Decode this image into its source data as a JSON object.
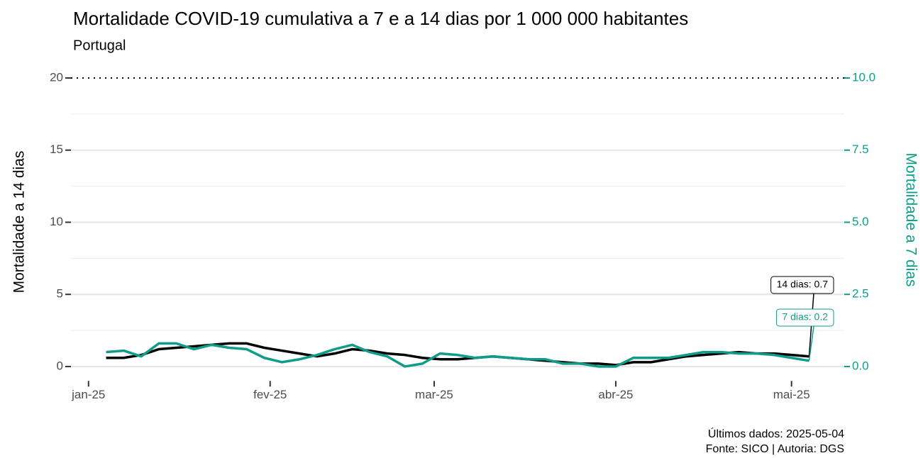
{
  "chart_data": {
    "type": "line",
    "title": "Mortalidade COVID-19 cumulativa a 7 e a 14 dias por 1 000 000 habitantes",
    "subtitle": "Portugal",
    "ylabel": "Mortalidade a 14 dias",
    "y2label": "Mortalidade a 7 dias",
    "caption": [
      "Últimos dados: 2025-05-04",
      "Fonte: SICO | Autoria: DGS"
    ],
    "x": [
      "2025-01-04",
      "2025-01-07",
      "2025-01-10",
      "2025-01-13",
      "2025-01-16",
      "2025-01-19",
      "2025-01-22",
      "2025-01-25",
      "2025-01-28",
      "2025-01-31",
      "2025-02-03",
      "2025-02-06",
      "2025-02-09",
      "2025-02-12",
      "2025-02-15",
      "2025-02-18",
      "2025-02-21",
      "2025-02-24",
      "2025-02-27",
      "2025-03-02",
      "2025-03-05",
      "2025-03-08",
      "2025-03-11",
      "2025-03-14",
      "2025-03-17",
      "2025-03-20",
      "2025-03-23",
      "2025-03-26",
      "2025-03-29",
      "2025-04-01",
      "2025-04-04",
      "2025-04-07",
      "2025-04-10",
      "2025-04-13",
      "2025-04-16",
      "2025-04-19",
      "2025-04-22",
      "2025-04-25",
      "2025-04-28",
      "2025-05-01",
      "2025-05-04"
    ],
    "series": [
      {
        "label": "14 dias: 0.7",
        "color": "#000000",
        "values": [
          0.6,
          0.6,
          0.8,
          1.2,
          1.3,
          1.4,
          1.5,
          1.6,
          1.6,
          1.3,
          1.1,
          0.9,
          0.7,
          0.9,
          1.2,
          1.1,
          0.9,
          0.8,
          0.6,
          0.5,
          0.5,
          0.6,
          0.7,
          0.6,
          0.5,
          0.4,
          0.3,
          0.2,
          0.2,
          0.1,
          0.3,
          0.3,
          0.5,
          0.7,
          0.8,
          0.9,
          1.0,
          0.9,
          0.9,
          0.8,
          0.7
        ]
      },
      {
        "label": "7 dias: 0.2",
        "color": "#0f9d8a",
        "axis": "y2",
        "values": [
          0.5,
          0.55,
          0.35,
          0.8,
          0.8,
          0.6,
          0.75,
          0.65,
          0.6,
          0.3,
          0.15,
          0.25,
          0.4,
          0.6,
          0.75,
          0.5,
          0.35,
          0.0,
          0.1,
          0.45,
          0.4,
          0.3,
          0.35,
          0.3,
          0.25,
          0.25,
          0.1,
          0.1,
          0.0,
          0.0,
          0.3,
          0.3,
          0.3,
          0.4,
          0.5,
          0.5,
          0.45,
          0.45,
          0.4,
          0.3,
          0.2
        ]
      }
    ],
    "xlim": [
      "2024-12-29",
      "2025-05-10"
    ],
    "xticks": [
      {
        "value": "2025-01-01",
        "label": "jan-25"
      },
      {
        "value": "2025-02-01",
        "label": "fev-25"
      },
      {
        "value": "2025-03-01",
        "label": "mar-25"
      },
      {
        "value": "2025-04-01",
        "label": "abr-25"
      },
      {
        "value": "2025-05-01",
        "label": "mai-25"
      }
    ],
    "ylim": [
      -1,
      20
    ],
    "yticks": [
      0,
      5,
      10,
      15,
      20
    ],
    "y2lim": [
      -0.5,
      10
    ],
    "y2ticks": [
      {
        "value": 0,
        "label": "0.0"
      },
      2.5,
      {
        "value": 5,
        "label": "5.0"
      },
      7.5,
      {
        "value": 10,
        "label": "10.0"
      }
    ],
    "hline": 20,
    "grid": true
  }
}
